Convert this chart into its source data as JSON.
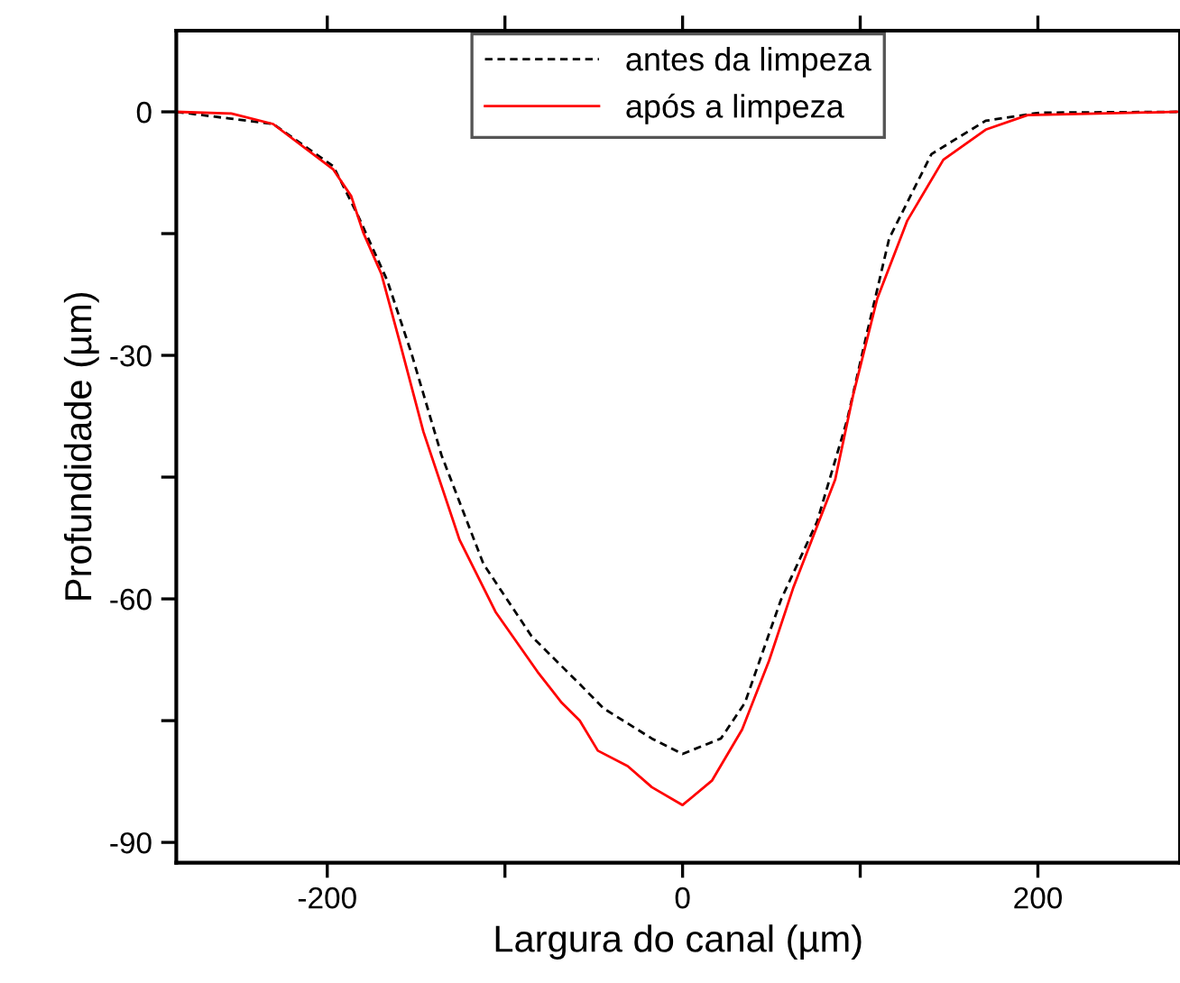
{
  "chart_data": {
    "type": "line",
    "xlabel": "Largura do canal (µm)",
    "ylabel": "Profundidade (µm)",
    "xlim": [
      -285,
      280
    ],
    "ylim": [
      -92.5,
      10
    ],
    "xticks": [
      -200,
      {
        "value": -100,
        "label": null
      },
      0,
      {
        "value": 100,
        "label": null
      },
      200
    ],
    "yticks": [
      {
        "value": -90,
        "label": "-90"
      },
      {
        "value": -75,
        "label": null
      },
      {
        "value": -60,
        "label": "-60"
      },
      {
        "value": -45,
        "label": null
      },
      {
        "value": -30,
        "label": "-30"
      },
      {
        "value": -15,
        "label": null
      },
      0
    ],
    "grid": false,
    "legend": "top",
    "marker": "none",
    "series": [
      {
        "name": "antes da limpeza",
        "color": "#000000",
        "line_style": "dashed",
        "x": [
          -285,
          -230.5,
          -196.6,
          -183.1,
          -166.2,
          -152.7,
          -135.7,
          -112.1,
          -85,
          -57.9,
          -44.4,
          -17.3,
          0,
          21.6,
          35.1,
          55.4,
          75.7,
          92.7,
          102.8,
          116.3,
          140.1,
          170.6,
          201,
          278.5
        ],
        "values": [
          0,
          -1.5,
          -6.7,
          -12.6,
          -20.8,
          -29.7,
          -42.3,
          -55.7,
          -64.6,
          -70.5,
          -73.5,
          -77.2,
          -79.1,
          -77.2,
          -72.8,
          -60.1,
          -50.5,
          -37.9,
          -28.2,
          -15.6,
          -5.2,
          -1.1,
          -0.1,
          0
        ]
      },
      {
        "name": "após a limpeza",
        "color": "#ff0000",
        "line_style": "solid",
        "x": [
          -285,
          -254,
          -230.5,
          -196.6,
          -186.5,
          -179.7,
          -169.5,
          -159.4,
          -145.9,
          -125.6,
          -105.3,
          -81.6,
          -68,
          -57.9,
          -47.7,
          -30.9,
          -17.3,
          0,
          16.5,
          33.5,
          48.7,
          62.2,
          85.9,
          96,
          109.6,
          126.5,
          146.8,
          170.6,
          194.2,
          278.5
        ],
        "values": [
          0,
          -0.2,
          -1.5,
          -7.1,
          -10.4,
          -14.9,
          -20,
          -28.2,
          -39.4,
          -52.7,
          -61.6,
          -69,
          -72.8,
          -75,
          -78.7,
          -80.6,
          -83.2,
          -85.4,
          -82.4,
          -76.1,
          -67.6,
          -58.7,
          -45.3,
          -34.9,
          -23,
          -13.4,
          -5.9,
          -2.2,
          -0.4,
          0
        ]
      }
    ]
  }
}
